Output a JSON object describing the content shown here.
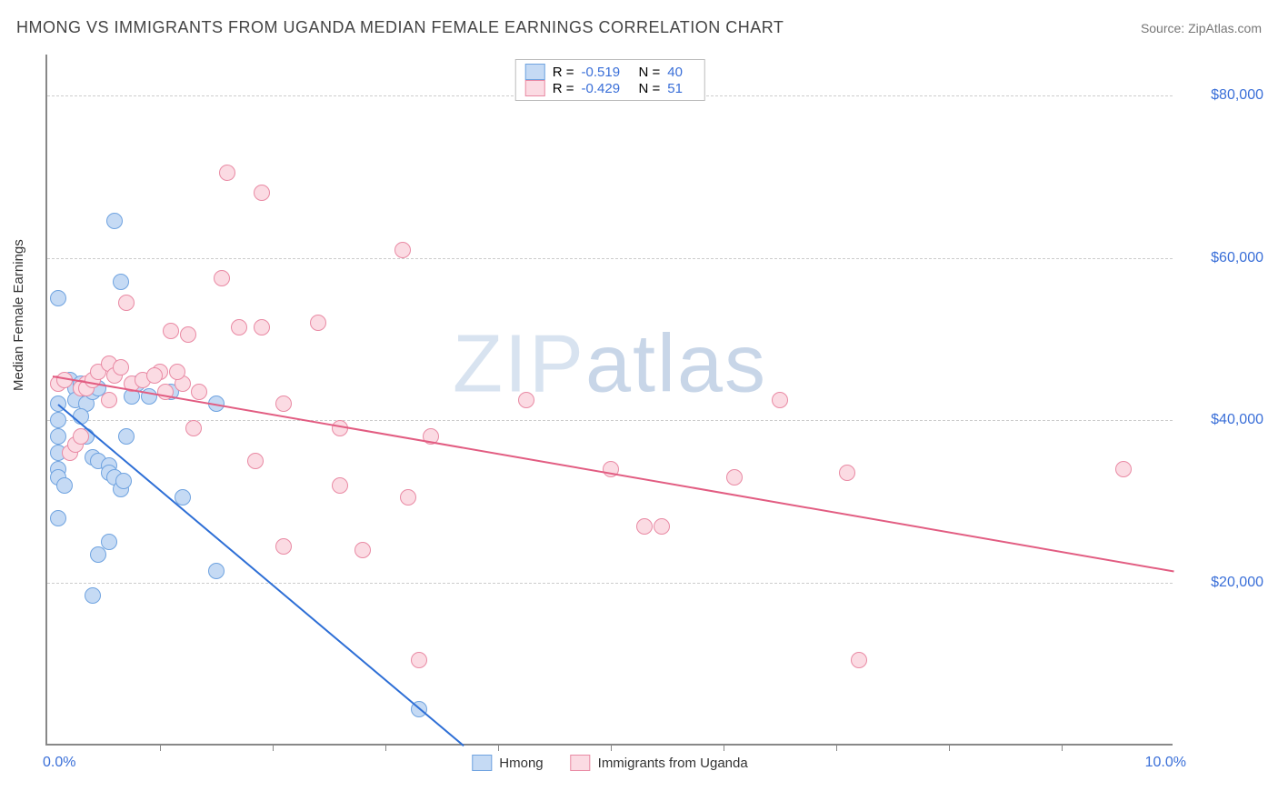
{
  "title": "HMONG VS IMMIGRANTS FROM UGANDA MEDIAN FEMALE EARNINGS CORRELATION CHART",
  "source_label": "Source: ",
  "source_value": "ZipAtlas.com",
  "y_axis_title": "Median Female Earnings",
  "watermark_a": "ZIP",
  "watermark_b": "atlas",
  "chart": {
    "type": "scatter",
    "xlim": [
      0,
      10
    ],
    "ylim": [
      0,
      85000
    ],
    "x_tick_positions": [
      1,
      2,
      3,
      4,
      5,
      6,
      7,
      8,
      9
    ],
    "x_left_label": "0.0%",
    "x_right_label": "10.0%",
    "y_ticks": [
      20000,
      40000,
      60000,
      80000
    ],
    "y_tick_labels": [
      "$20,000",
      "$40,000",
      "$60,000",
      "$80,000"
    ],
    "grid_color": "#cccccc",
    "axis_color": "#888888",
    "background_color": "#ffffff",
    "marker_radius": 9,
    "marker_stroke_width": 1.5,
    "series": [
      {
        "name": "Hmong",
        "key": "hmong",
        "fill": "#c5daf4",
        "stroke": "#6fa3e0",
        "line_color": "#2e6fd6",
        "R": "-0.519",
        "N": "40",
        "points": [
          [
            0.1,
            55000
          ],
          [
            0.6,
            64500
          ],
          [
            0.65,
            57000
          ],
          [
            0.1,
            42000
          ],
          [
            0.1,
            40000
          ],
          [
            0.1,
            38000
          ],
          [
            0.1,
            36000
          ],
          [
            0.1,
            34000
          ],
          [
            0.1,
            33000
          ],
          [
            0.15,
            32000
          ],
          [
            0.1,
            28000
          ],
          [
            0.2,
            45000
          ],
          [
            0.25,
            44000
          ],
          [
            0.3,
            44500
          ],
          [
            0.3,
            44000
          ],
          [
            0.25,
            42500
          ],
          [
            0.35,
            42000
          ],
          [
            0.4,
            43500
          ],
          [
            0.45,
            44000
          ],
          [
            0.3,
            40500
          ],
          [
            0.35,
            38000
          ],
          [
            0.4,
            35500
          ],
          [
            0.45,
            35000
          ],
          [
            0.55,
            34500
          ],
          [
            0.55,
            33500
          ],
          [
            0.6,
            33000
          ],
          [
            0.65,
            31500
          ],
          [
            0.68,
            32500
          ],
          [
            0.7,
            38000
          ],
          [
            0.75,
            43000
          ],
          [
            0.8,
            44500
          ],
          [
            0.9,
            43000
          ],
          [
            1.1,
            43500
          ],
          [
            1.2,
            30500
          ],
          [
            0.45,
            23500
          ],
          [
            0.55,
            25000
          ],
          [
            0.4,
            18500
          ],
          [
            1.5,
            21500
          ],
          [
            1.5,
            42000
          ],
          [
            3.3,
            4500
          ]
        ],
        "trend": {
          "x1": 0.1,
          "y1": 42000,
          "x2": 3.7,
          "y2": 0
        }
      },
      {
        "name": "Immigrants from Uganda",
        "key": "uganda",
        "fill": "#fbdbe3",
        "stroke": "#e98aa4",
        "line_color": "#e25d82",
        "R": "-0.429",
        "N": "51",
        "points": [
          [
            1.6,
            70500
          ],
          [
            1.9,
            68000
          ],
          [
            1.55,
            57500
          ],
          [
            1.7,
            51500
          ],
          [
            1.9,
            51500
          ],
          [
            1.25,
            50500
          ],
          [
            1.1,
            51000
          ],
          [
            1.0,
            46000
          ],
          [
            0.7,
            54500
          ],
          [
            0.55,
            42500
          ],
          [
            0.35,
            44500
          ],
          [
            0.3,
            44000
          ],
          [
            0.1,
            44500
          ],
          [
            0.15,
            45000
          ],
          [
            1.05,
            43500
          ],
          [
            1.2,
            44500
          ],
          [
            1.3,
            39000
          ],
          [
            1.35,
            43500
          ],
          [
            2.4,
            52000
          ],
          [
            2.6,
            39000
          ],
          [
            2.6,
            32000
          ],
          [
            2.8,
            24000
          ],
          [
            2.1,
            24500
          ],
          [
            1.85,
            35000
          ],
          [
            2.1,
            42000
          ],
          [
            3.15,
            61000
          ],
          [
            3.4,
            38000
          ],
          [
            3.2,
            30500
          ],
          [
            3.3,
            10500
          ],
          [
            4.25,
            42500
          ],
          [
            5.0,
            34000
          ],
          [
            5.3,
            27000
          ],
          [
            5.45,
            27000
          ],
          [
            6.1,
            33000
          ],
          [
            6.5,
            42500
          ],
          [
            7.1,
            33500
          ],
          [
            7.2,
            10500
          ],
          [
            9.55,
            34000
          ],
          [
            0.2,
            36000
          ],
          [
            0.25,
            37000
          ],
          [
            0.3,
            38000
          ],
          [
            0.35,
            44000
          ],
          [
            0.4,
            45000
          ],
          [
            0.45,
            46000
          ],
          [
            0.55,
            47000
          ],
          [
            0.6,
            45500
          ],
          [
            0.65,
            46500
          ],
          [
            0.75,
            44500
          ],
          [
            0.85,
            45000
          ],
          [
            0.95,
            45500
          ],
          [
            1.15,
            46000
          ]
        ],
        "trend": {
          "x1": 0.05,
          "y1": 45500,
          "x2": 10.0,
          "y2": 21500
        }
      }
    ]
  },
  "legend_top": {
    "R_label": "R =",
    "N_label": "N ="
  },
  "legend_bottom": {
    "hmong": "Hmong",
    "uganda": "Immigrants from Uganda"
  }
}
